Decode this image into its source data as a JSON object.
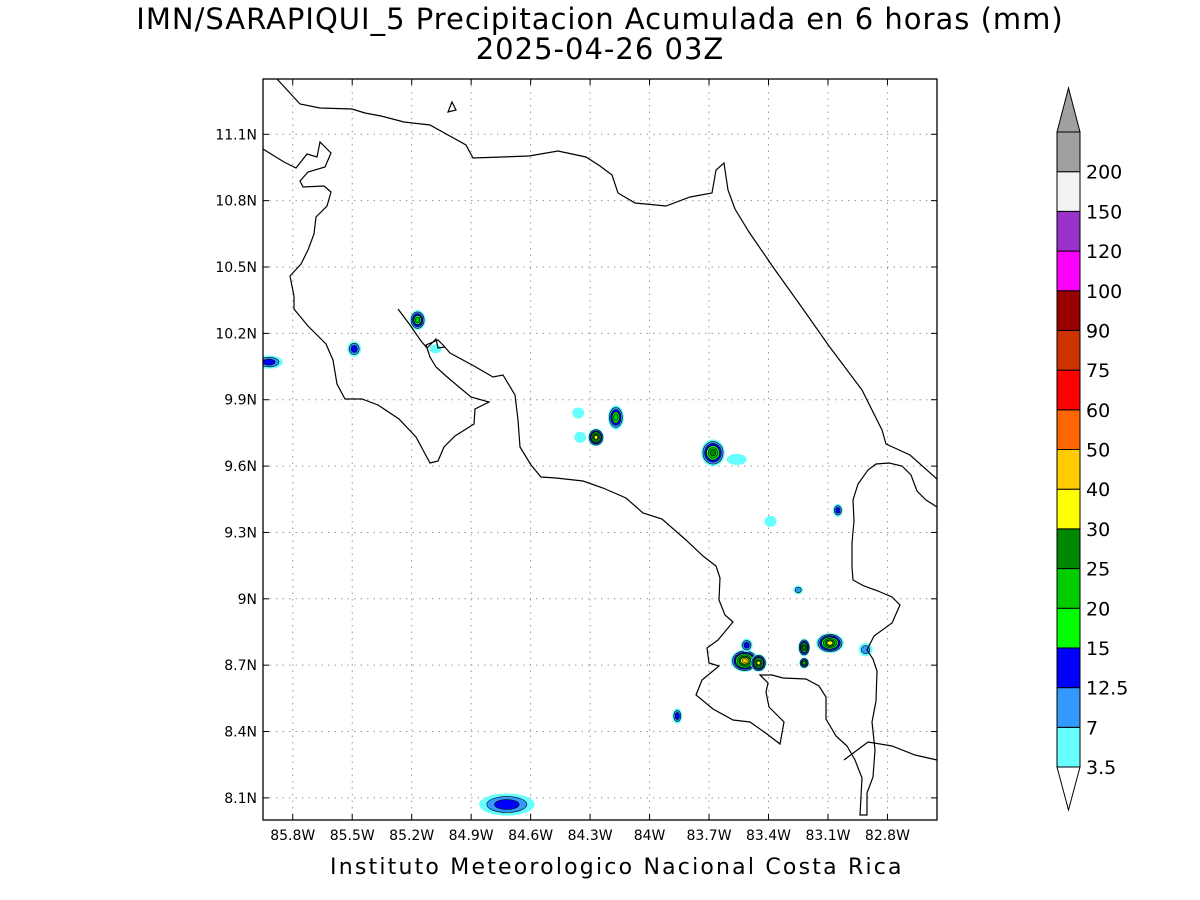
{
  "title": {
    "line1": "IMN/SARAPIQUI_5 Precipitacion Acumulada en 6 horas (mm)",
    "line2": "2025-04-26 03Z"
  },
  "footer": "Instituto Meteorologico Nacional Costa Rica",
  "map": {
    "lon_range": [
      -85.95,
      -82.55
    ],
    "lat_range": [
      8.0,
      11.35
    ],
    "lon_ticks": [
      {
        "value": -85.8,
        "label": "85.8W"
      },
      {
        "value": -85.5,
        "label": "85.5W"
      },
      {
        "value": -85.2,
        "label": "85.2W"
      },
      {
        "value": -84.9,
        "label": "84.9W"
      },
      {
        "value": -84.6,
        "label": "84.6W"
      },
      {
        "value": -84.3,
        "label": "84.3W"
      },
      {
        "value": -84.0,
        "label": "84W"
      },
      {
        "value": -83.7,
        "label": "83.7W"
      },
      {
        "value": -83.4,
        "label": "83.4W"
      },
      {
        "value": -83.1,
        "label": "83.1W"
      },
      {
        "value": -82.8,
        "label": "82.8W"
      }
    ],
    "lat_ticks": [
      {
        "value": 11.1,
        "label": "11.1N"
      },
      {
        "value": 10.8,
        "label": "10.8N"
      },
      {
        "value": 10.5,
        "label": "10.5N"
      },
      {
        "value": 10.2,
        "label": "10.2N"
      },
      {
        "value": 9.9,
        "label": "9.9N"
      },
      {
        "value": 9.6,
        "label": "9.6N"
      },
      {
        "value": 9.3,
        "label": "9.3N"
      },
      {
        "value": 9.0,
        "label": "9N"
      },
      {
        "value": 8.7,
        "label": "8.7N"
      },
      {
        "value": 8.4,
        "label": "8.4N"
      },
      {
        "value": 8.1,
        "label": "8.1N"
      }
    ],
    "grid": "dotted"
  },
  "colorbar": {
    "levels": [
      {
        "label": "3.5",
        "color": "#66ffff"
      },
      {
        "label": "7",
        "color": "#3399ff"
      },
      {
        "label": "12.5",
        "color": "#0000ff"
      },
      {
        "label": "15",
        "color": "#00ff00"
      },
      {
        "label": "20",
        "color": "#00cc00"
      },
      {
        "label": "25",
        "color": "#008800"
      },
      {
        "label": "30",
        "color": "#ffff00"
      },
      {
        "label": "40",
        "color": "#ffcc00"
      },
      {
        "label": "50",
        "color": "#ff6600"
      },
      {
        "label": "60",
        "color": "#ff0000"
      },
      {
        "label": "75",
        "color": "#cc3300"
      },
      {
        "label": "90",
        "color": "#990000"
      },
      {
        "label": "100",
        "color": "#ff00ff"
      },
      {
        "label": "120",
        "color": "#9933cc"
      },
      {
        "label": "150",
        "color": "#f2f2f2"
      },
      {
        "label": "200",
        "color": "#a0a0a0"
      }
    ],
    "top_arrow_color": "#a0a0a0",
    "bottom_arrow_color": "#ffffff"
  },
  "precip_cells": [
    {
      "lon": -85.92,
      "lat": 10.07,
      "rx": 0.07,
      "ry": 0.03,
      "max": "12.5"
    },
    {
      "lon": -85.49,
      "lat": 10.13,
      "rx": 0.035,
      "ry": 0.035,
      "max": "12.5"
    },
    {
      "lon": -85.17,
      "lat": 10.26,
      "rx": 0.04,
      "ry": 0.045,
      "max": "20"
    },
    {
      "lon": -85.08,
      "lat": 10.13,
      "rx": 0.03,
      "ry": 0.02,
      "max": "3.5"
    },
    {
      "lon": -84.17,
      "lat": 9.82,
      "rx": 0.04,
      "ry": 0.055,
      "max": "20"
    },
    {
      "lon": -84.27,
      "lat": 9.73,
      "rx": 0.04,
      "ry": 0.04,
      "max": "30"
    },
    {
      "lon": -84.35,
      "lat": 9.73,
      "rx": 0.03,
      "ry": 0.025,
      "max": "3.5"
    },
    {
      "lon": -84.36,
      "lat": 9.84,
      "rx": 0.03,
      "ry": 0.025,
      "max": "3.5"
    },
    {
      "lon": -83.68,
      "lat": 9.66,
      "rx": 0.06,
      "ry": 0.06,
      "max": "25"
    },
    {
      "lon": -83.56,
      "lat": 9.63,
      "rx": 0.05,
      "ry": 0.025,
      "max": "3.5"
    },
    {
      "lon": -83.39,
      "lat": 9.35,
      "rx": 0.03,
      "ry": 0.025,
      "max": "3.5"
    },
    {
      "lon": -83.05,
      "lat": 9.4,
      "rx": 0.025,
      "ry": 0.03,
      "max": "12.5"
    },
    {
      "lon": -83.25,
      "lat": 9.04,
      "rx": 0.025,
      "ry": 0.02,
      "max": "7"
    },
    {
      "lon": -83.52,
      "lat": 8.72,
      "rx": 0.07,
      "ry": 0.05,
      "max": "40"
    },
    {
      "lon": -83.45,
      "lat": 8.71,
      "rx": 0.04,
      "ry": 0.04,
      "max": "30"
    },
    {
      "lon": -83.51,
      "lat": 8.79,
      "rx": 0.03,
      "ry": 0.03,
      "max": "12.5"
    },
    {
      "lon": -83.22,
      "lat": 8.78,
      "rx": 0.03,
      "ry": 0.04,
      "max": "25"
    },
    {
      "lon": -83.22,
      "lat": 8.71,
      "rx": 0.025,
      "ry": 0.025,
      "max": "20"
    },
    {
      "lon": -83.09,
      "lat": 8.8,
      "rx": 0.07,
      "ry": 0.045,
      "max": "30"
    },
    {
      "lon": -82.91,
      "lat": 8.77,
      "rx": 0.035,
      "ry": 0.03,
      "max": "7"
    },
    {
      "lon": -83.86,
      "lat": 8.47,
      "rx": 0.025,
      "ry": 0.035,
      "max": "12.5"
    },
    {
      "lon": -84.72,
      "lat": 8.07,
      "rx": 0.14,
      "ry": 0.05,
      "max": "12.5"
    }
  ]
}
